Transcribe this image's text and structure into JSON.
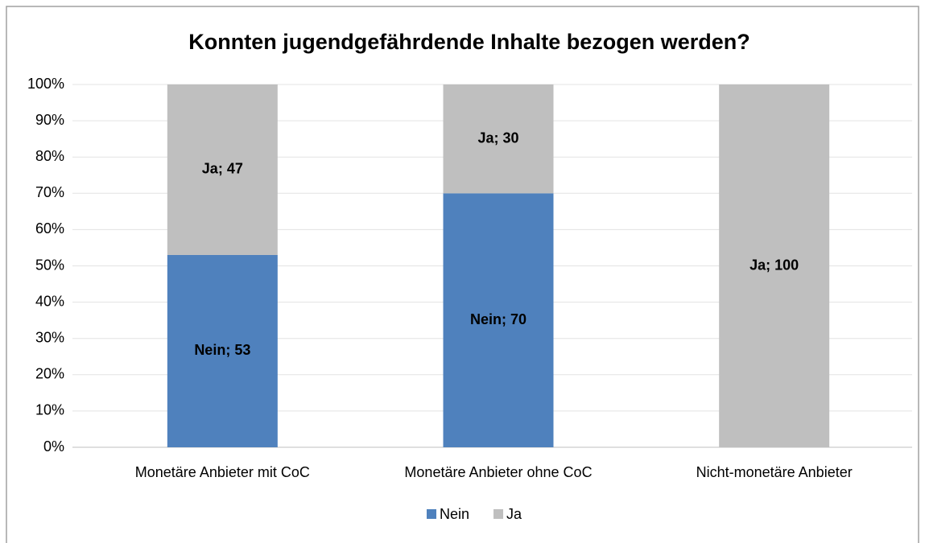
{
  "chart_data": {
    "type": "stacked_bar",
    "title": "Konnten jugendgefährdende Inhalte bezogen werden?",
    "categories": [
      "Monetäre Anbieter mit CoC",
      "Monetäre Anbieter ohne CoC",
      "Nicht-monetäre Anbieter"
    ],
    "series": [
      {
        "name": "Nein",
        "color": "#4f81bd",
        "values": [
          53,
          70,
          null
        ],
        "value_labels": [
          "Nein; 53",
          "Nein; 70",
          null
        ]
      },
      {
        "name": "Ja",
        "color": "#bfbfbf",
        "values": [
          47,
          30,
          100
        ],
        "value_labels": [
          "Ja; 47",
          "Ja; 30",
          "Ja; 100"
        ]
      }
    ],
    "ylim": [
      0,
      100
    ],
    "yticks": [
      {
        "value": 0,
        "label": "0%"
      },
      {
        "value": 10,
        "label": "10%"
      },
      {
        "value": 20,
        "label": "20%"
      },
      {
        "value": 30,
        "label": "30%"
      },
      {
        "value": 40,
        "label": "40%"
      },
      {
        "value": 50,
        "label": "50%"
      },
      {
        "value": 60,
        "label": "60%"
      },
      {
        "value": 70,
        "label": "70%"
      },
      {
        "value": 80,
        "label": "80%"
      },
      {
        "value": 90,
        "label": "90%"
      },
      {
        "value": 100,
        "label": "100%"
      }
    ],
    "grid": true,
    "legend": "bottom"
  }
}
